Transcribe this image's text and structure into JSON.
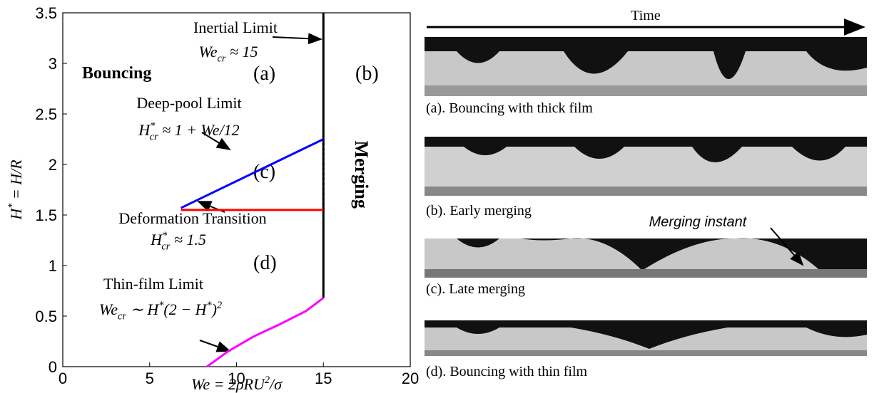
{
  "chart_data": {
    "type": "line",
    "xlabel": [
      "We = 2ρRU",
      "2",
      "/σ"
    ],
    "ylabel": [
      "H",
      "*",
      " = H/R"
    ],
    "xlim": [
      0,
      20
    ],
    "ylim": [
      0,
      3.5
    ],
    "xticks": [
      0,
      5,
      10,
      15,
      20
    ],
    "yticks": [
      0,
      0.5,
      1,
      1.5,
      2,
      2.5,
      3,
      3.5
    ],
    "series": [
      {
        "color": "#000000",
        "style": "solid",
        "x": [
          15,
          15
        ],
        "values": [
          0.68,
          3.5
        ]
      },
      {
        "color": "#000000",
        "style": "dotted",
        "x": [
          15,
          15
        ],
        "values": [
          1.55,
          2.25
        ]
      },
      {
        "color": "#0000ff",
        "style": "solid",
        "x": [
          6.8,
          15
        ],
        "values": [
          1.57,
          2.25
        ]
      },
      {
        "color": "#ff0000",
        "style": "solid",
        "x": [
          6.8,
          15
        ],
        "values": [
          1.55,
          1.55
        ]
      },
      {
        "color": "#ff00ff",
        "style": "solid",
        "x": [
          8.3,
          9.5,
          11,
          12.5,
          14,
          15
        ],
        "values": [
          0,
          0.15,
          0.3,
          0.42,
          0.55,
          0.68
        ]
      }
    ],
    "annotations": [
      [
        "Inertial Limit"
      ],
      [
        "We",
        "cr",
        " ≈ 15"
      ],
      [
        "Deep-pool Limit"
      ],
      [
        "H",
        "*",
        "cr",
        " ≈ 1 + We/12"
      ],
      [
        "Deformation Transition"
      ],
      [
        "H",
        "*",
        "cr",
        " ≈ 1.5"
      ],
      [
        "Thin-film Limit"
      ],
      [
        "We",
        "cr",
        " ∼ H",
        "*",
        "(2 − H",
        "*",
        ")",
        "2"
      ]
    ],
    "regions": [
      "Bouncing",
      "(a)",
      "(b)",
      "(c)",
      "(d)",
      "Merging"
    ]
  },
  "panels": {
    "time": "Time",
    "captions": [
      "(a). Bouncing with thick film",
      "(b). Early merging",
      "(c). Late merging",
      "(d). Bouncing with thin film"
    ],
    "note": "Merging instant"
  }
}
